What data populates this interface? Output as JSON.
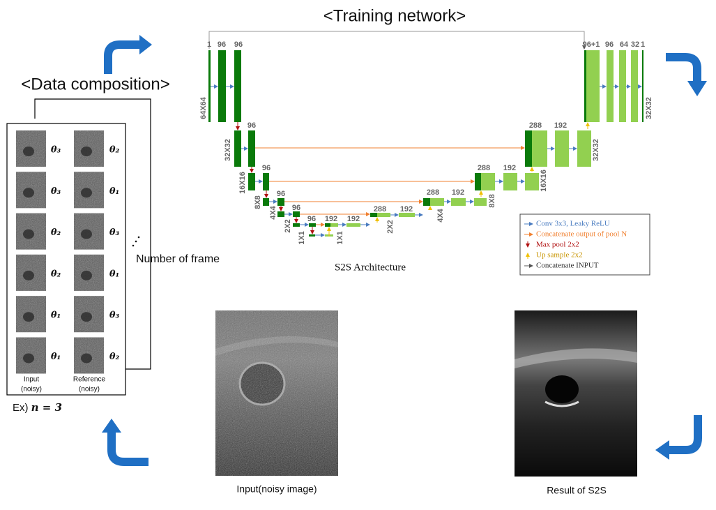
{
  "training_title": "<Training network>",
  "data_title": "<Data composition>",
  "frames": [
    [
      "θ₃",
      "θ₂"
    ],
    [
      "θ₃",
      "θ₁"
    ],
    [
      "θ₂",
      "θ₃"
    ],
    [
      "θ₂",
      "θ₁"
    ],
    [
      "θ₁",
      "θ₃"
    ],
    [
      "θ₁",
      "θ₂"
    ]
  ],
  "column_labels": [
    [
      "Input",
      "(noisy)"
    ],
    [
      "Reference",
      "(noisy)"
    ]
  ],
  "number_of_frame": "Number of frame",
  "example": {
    "prefix": "Ex)",
    "formula": "n = 3"
  },
  "network": {
    "channel_labels": [
      "1",
      "96",
      "96",
      "96",
      "96",
      "96",
      "96",
      "96",
      "192",
      "192",
      "288",
      "192",
      "288",
      "192",
      "288",
      "192",
      "288",
      "192",
      "96+1",
      "96",
      "64",
      "32",
      "1"
    ],
    "size_labels": [
      "64X64",
      "32X32",
      "16X16",
      "8X8",
      "4X4",
      "2X2",
      "1X1",
      "1X1",
      "2X2",
      "4X4",
      "8X8",
      "16X16",
      "32X32",
      "32X32"
    ],
    "caption": "S2S Architecture",
    "legend": [
      "Conv 3x3, Leaky ReLU",
      "Concatenate output of pool N",
      "Max pool 2x2",
      "Up sample 2x2",
      "Concatenate INPUT"
    ]
  },
  "captions": {
    "input": "Input(noisy  image)",
    "result": "Result  of S2S"
  }
}
